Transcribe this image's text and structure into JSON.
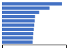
{
  "chart_data": {
    "type": "bar",
    "orientation": "horizontal",
    "categories": [
      null,
      null,
      null,
      null,
      null,
      null,
      null,
      null,
      null,
      null
    ],
    "values": [
      2.9,
      2.3,
      1.8,
      1.6,
      1.58,
      1.56,
      1.54,
      1.52,
      1.5,
      1.48
    ],
    "color": "#4472c4",
    "xlim": [
      0,
      3.1
    ],
    "tick_labels": false
  }
}
